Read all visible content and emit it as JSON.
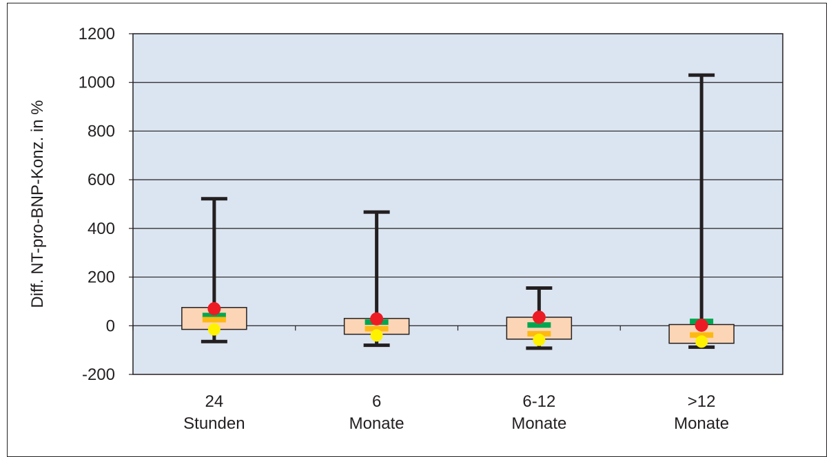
{
  "chart_data": {
    "type": "box",
    "title": "",
    "xlabel": "",
    "ylabel": "Diff. NT-pro-BNP-Konz. in %",
    "ylim": [
      -200,
      1200
    ],
    "yticks": [
      -200,
      0,
      200,
      400,
      600,
      800,
      1000,
      1200
    ],
    "grid": true,
    "categories": [
      {
        "line1": "24",
        "line2": "Stunden"
      },
      {
        "line1": "6",
        "line2": "Monate"
      },
      {
        "line1": "6-12",
        "line2": "Monate"
      },
      {
        "line1": ">12",
        "line2": "Monate"
      }
    ],
    "boxes": [
      {
        "min": -65,
        "q1": -15,
        "median": 25,
        "q3": 75,
        "max": 522,
        "green_marker": 42,
        "red_point": 70,
        "yellow_point": -15
      },
      {
        "min": -80,
        "q1": -35,
        "median": -12,
        "q3": 30,
        "max": 467,
        "green_marker": 15,
        "red_point": 28,
        "yellow_point": -40
      },
      {
        "min": -92,
        "q1": -55,
        "median": -33,
        "q3": 35,
        "max": 155,
        "green_marker": 3,
        "red_point": 35,
        "yellow_point": -58
      },
      {
        "min": -88,
        "q1": -72,
        "median": -38,
        "q3": 5,
        "max": 1030,
        "green_marker": 18,
        "red_point": 2,
        "yellow_point": -65
      }
    ],
    "colors": {
      "plot_bg": "#dbe5f1",
      "box_fill": "#fbd5b5",
      "whisker": "#231f20",
      "green": "#00a651",
      "orange": "#fdb913",
      "red": "#ed1c24",
      "yellow": "#fff200"
    }
  }
}
